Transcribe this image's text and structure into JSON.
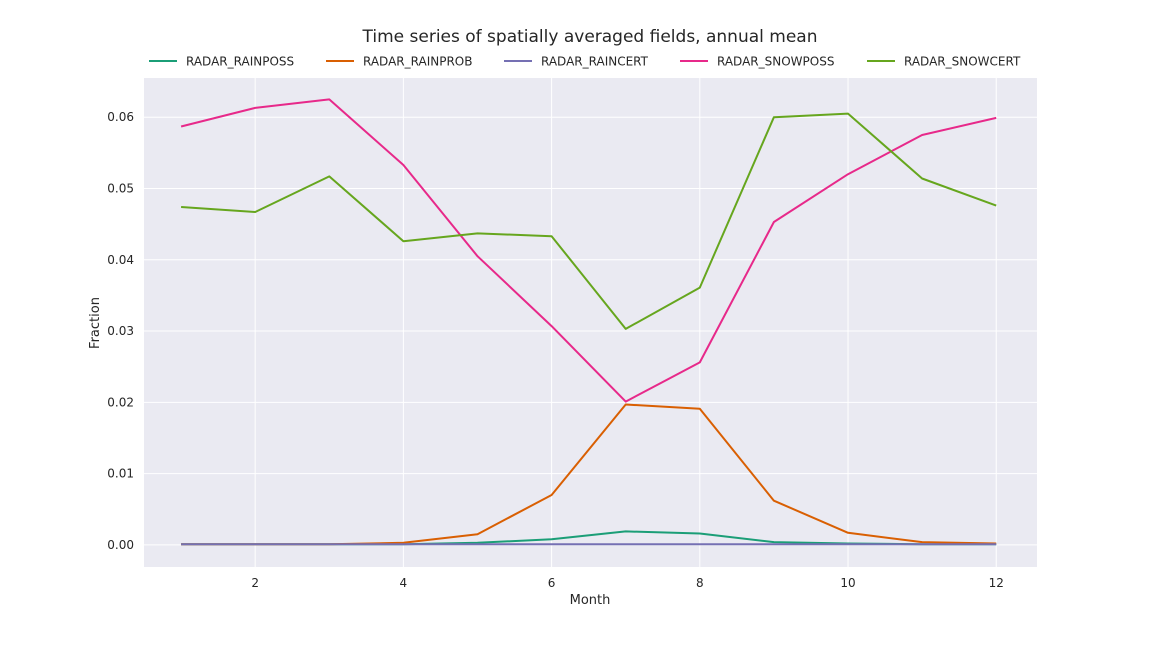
{
  "chart_data": {
    "type": "line",
    "title": "Time series of spatially averaged fields, annual mean",
    "xlabel": "Month",
    "ylabel": "Fraction",
    "x": [
      1,
      2,
      3,
      4,
      5,
      6,
      7,
      8,
      9,
      10,
      11,
      12
    ],
    "xlim": [
      0.5,
      12.55
    ],
    "ylim": [
      -0.0031,
      0.0655
    ],
    "xticks": [
      2,
      4,
      6,
      8,
      10,
      12
    ],
    "yticks": [
      0.0,
      0.01,
      0.02,
      0.03,
      0.04,
      0.05,
      0.06
    ],
    "xtick_labels": [
      "2",
      "4",
      "6",
      "8",
      "10",
      "12"
    ],
    "ytick_labels": [
      "0.00",
      "0.01",
      "0.02",
      "0.03",
      "0.04",
      "0.05",
      "0.06"
    ],
    "grid": true,
    "legend_position": "top",
    "background": "#eaeaf2",
    "series": [
      {
        "name": "RADAR_RAINPOSS",
        "color": "#1b9e77",
        "values": [
          0.0001,
          0.0001,
          0.0001,
          0.0001,
          0.0003,
          0.0008,
          0.0019,
          0.0016,
          0.0004,
          0.0002,
          0.0001,
          0.0001
        ]
      },
      {
        "name": "RADAR_RAINPROB",
        "color": "#d95f02",
        "values": [
          0.0001,
          0.0001,
          0.0001,
          0.0003,
          0.0015,
          0.007,
          0.0197,
          0.0191,
          0.0062,
          0.0017,
          0.0004,
          0.0002
        ]
      },
      {
        "name": "RADAR_RAINCERT",
        "color": "#7570b3",
        "values": [
          0.0001,
          0.0001,
          0.0001,
          0.0001,
          0.0001,
          0.0001,
          0.0001,
          0.0001,
          0.0001,
          0.0001,
          0.0001,
          0.0001
        ]
      },
      {
        "name": "RADAR_SNOWPOSS",
        "color": "#e7298a",
        "values": [
          0.0587,
          0.0613,
          0.0625,
          0.0533,
          0.0405,
          0.0307,
          0.0201,
          0.0256,
          0.0453,
          0.052,
          0.0575,
          0.0599
        ]
      },
      {
        "name": "RADAR_SNOWCERT",
        "color": "#66a61e",
        "values": [
          0.0474,
          0.0467,
          0.0517,
          0.0426,
          0.0437,
          0.0433,
          0.0303,
          0.0361,
          0.06,
          0.0605,
          0.0514,
          0.0476
        ]
      }
    ]
  }
}
